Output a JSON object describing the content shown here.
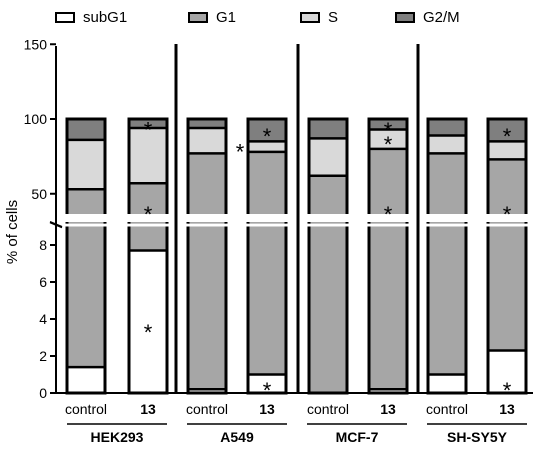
{
  "chart_data": {
    "type": "bar",
    "stacked": true,
    "broken_y_axis": true,
    "ylabel": "% of cells",
    "yticks_lower": [
      "0",
      "2",
      "4",
      "6",
      "8"
    ],
    "yticks_upper": [
      "50",
      "100",
      "150"
    ],
    "ylim_lower": [
      0,
      9
    ],
    "ylim_upper": [
      30,
      150
    ],
    "groups": [
      "HEK293",
      "A549",
      "MCF-7",
      "SH-SY5Y"
    ],
    "conditions": [
      "control",
      "13"
    ],
    "legend_position": "top",
    "series": [
      {
        "name": "subG1",
        "color": "#ffffff"
      },
      {
        "name": "G1",
        "color": "#a6a6a6"
      },
      {
        "name": "S",
        "color": "#d9d9d9"
      },
      {
        "name": "G2/M",
        "color": "#7f7f7f"
      }
    ],
    "bars": [
      {
        "group": "HEK293",
        "condition": "control",
        "subG1": 1.4,
        "G1_top": 53,
        "S_top": 86,
        "total": 100,
        "stars": []
      },
      {
        "group": "HEK293",
        "condition": "13",
        "subG1": 7.7,
        "G1_top": 57,
        "S_top": 94,
        "total": 100,
        "stars": [
          "subG1",
          "G1",
          "G2/M"
        ]
      },
      {
        "group": "A549",
        "condition": "control",
        "subG1": 0.2,
        "G1_top": 77,
        "S_top": 94,
        "total": 100,
        "stars": []
      },
      {
        "group": "A549",
        "condition": "13",
        "subG1": 1.0,
        "G1_top": 78,
        "S_top": 85,
        "total": 100,
        "stars": [
          "subG1",
          "S",
          "G2/M"
        ]
      },
      {
        "group": "MCF-7",
        "condition": "control",
        "subG1": 0.0,
        "G1_top": 62,
        "S_top": 87,
        "total": 100,
        "stars": []
      },
      {
        "group": "MCF-7",
        "condition": "13",
        "subG1": 0.2,
        "G1_top": 80,
        "S_top": 93,
        "total": 100,
        "stars": [
          "G1",
          "S",
          "G2/M"
        ]
      },
      {
        "group": "SH-SY5Y",
        "condition": "control",
        "subG1": 1.0,
        "G1_top": 77,
        "S_top": 89,
        "total": 100,
        "stars": []
      },
      {
        "group": "SH-SY5Y",
        "condition": "13",
        "subG1": 2.3,
        "G1_top": 73,
        "S_top": 85,
        "total": 100,
        "stars": [
          "subG1",
          "G1",
          "G2/M"
        ]
      }
    ],
    "star_symbol": "*"
  }
}
